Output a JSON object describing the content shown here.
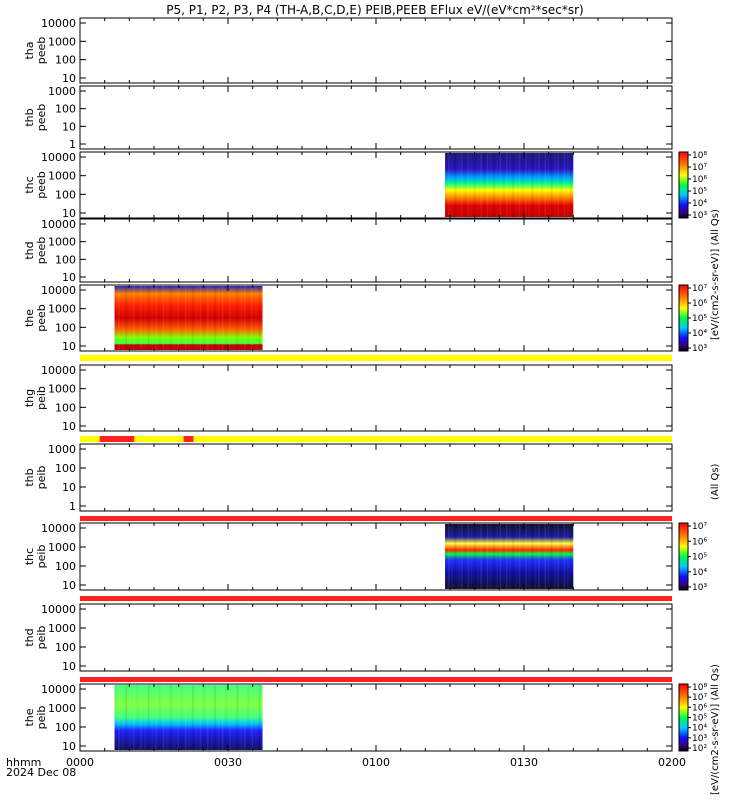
{
  "title": "P5, P1, P2, P3, P4 (TH-A,B,C,D,E) PEIB,PEEB EFlux eV/(eV*cm²*sec*sr)",
  "x_axis": {
    "ticks": [
      "0000",
      "0030",
      "0100",
      "0130",
      "0200"
    ],
    "corner_label_1": "hhmm",
    "corner_label_2": "2024 Dec 08"
  },
  "colorbar_label": "[eV/(cm2-s-sr-eV)] (All Qs)",
  "colorbar_label_mid": "(All Qs)",
  "colors": {
    "flag_yellow": "#ffff00",
    "flag_red": "#ff2020",
    "spectrogram_low": "#1a1a8f",
    "spectrogram_high": "#d40000"
  },
  "chart_data": {
    "type": "heatmap",
    "x_unit": "hhmm UT",
    "x_range": [
      "00:00",
      "02:00"
    ],
    "panels": [
      {
        "id": "tha-peeb",
        "label_1": "tha",
        "label_2": "peeb",
        "yticks": [
          "10000",
          "1000",
          "100",
          "10"
        ],
        "has_data": false,
        "colorbar": null
      },
      {
        "id": "thb-peeb",
        "label_1": "thb",
        "label_2": "peeb",
        "yticks": [
          "1000",
          "100",
          "10",
          "1"
        ],
        "has_data": false,
        "colorbar": null
      },
      {
        "id": "thc-peeb",
        "label_1": "thc",
        "label_2": "peeb",
        "yticks": [
          "10000",
          "1000",
          "100",
          "10"
        ],
        "has_data": true,
        "data_start": "01:14",
        "data_end": "01:40",
        "colorbar": {
          "ticks": [
            "10⁸",
            "10⁷",
            "10⁶",
            "10⁵",
            "10⁴",
            "10³"
          ]
        }
      },
      {
        "id": "thd-peeb",
        "label_1": "thd",
        "label_2": "peeb",
        "yticks": [
          "10000",
          "1000",
          "100",
          "10"
        ],
        "has_data": false,
        "colorbar": null
      },
      {
        "id": "the-peeb",
        "label_1": "the",
        "label_2": "peeb",
        "yticks": [
          "10000",
          "1000",
          "100",
          "10"
        ],
        "has_data": true,
        "data_start": "00:07",
        "data_end": "00:37",
        "colorbar": {
          "ticks": [
            "10⁷",
            "10⁶",
            "10⁵",
            "10⁴",
            "10³"
          ]
        }
      },
      {
        "id": "thg-peib",
        "label_1": "thg",
        "label_2": "peib",
        "yticks": [
          "10000",
          "1000",
          "100",
          "10"
        ],
        "has_data": false,
        "colorbar": null
      },
      {
        "id": "thb-peib",
        "label_1": "thb",
        "label_2": "peib",
        "yticks": [
          "1000",
          "100",
          "10",
          "1"
        ],
        "has_data": false,
        "colorbar": null
      },
      {
        "id": "thc-peib",
        "label_1": "thc",
        "label_2": "peib",
        "yticks": [
          "10000",
          "1000",
          "100",
          "10"
        ],
        "has_data": true,
        "data_start": "01:14",
        "data_end": "01:40",
        "colorbar": {
          "ticks": [
            "10⁷",
            "10⁶",
            "10⁵",
            "10⁴",
            "10³"
          ]
        }
      },
      {
        "id": "thd-peib",
        "label_1": "thd",
        "label_2": "peib",
        "yticks": [
          "10000",
          "1000",
          "100",
          "10"
        ],
        "has_data": false,
        "colorbar": null
      },
      {
        "id": "the-peib",
        "label_1": "the",
        "label_2": "peib",
        "yticks": [
          "10000",
          "1000",
          "100",
          "10"
        ],
        "has_data": true,
        "data_start": "00:07",
        "data_end": "00:37",
        "colorbar": {
          "ticks": [
            "10⁸",
            "10⁷",
            "10⁶",
            "10⁵",
            "10⁴",
            "10³",
            "10²"
          ]
        }
      }
    ],
    "flag_bars": [
      {
        "id": "flag-1",
        "segments": [
          {
            "start": "00:00",
            "end": "02:00",
            "color": "yellow"
          }
        ]
      },
      {
        "id": "flag-2",
        "segments": [
          {
            "start": "00:00",
            "end": "02:00",
            "color": "yellow"
          },
          {
            "start": "00:04",
            "end": "00:11",
            "color": "red"
          },
          {
            "start": "00:21",
            "end": "00:23",
            "color": "red"
          }
        ]
      },
      {
        "id": "flag-3",
        "segments": [
          {
            "start": "00:00",
            "end": "02:00",
            "color": "red"
          }
        ]
      },
      {
        "id": "flag-4",
        "segments": [
          {
            "start": "00:00",
            "end": "02:00",
            "color": "red"
          }
        ]
      },
      {
        "id": "flag-5",
        "segments": [
          {
            "start": "00:00",
            "end": "02:00",
            "color": "red"
          }
        ]
      }
    ]
  }
}
